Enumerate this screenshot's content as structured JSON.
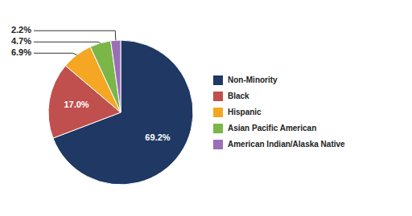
{
  "chart_data": {
    "type": "pie",
    "categories": [
      "Non-Minority",
      "Black",
      "Hispanic",
      "Asian Pacific American",
      "American Indian/Alaska Native"
    ],
    "values": [
      69.2,
      17.0,
      6.9,
      4.7,
      2.2
    ],
    "value_labels": [
      "69.2%",
      "17.0%",
      "6.9%",
      "4.7%",
      "2.2%"
    ],
    "colors": [
      "#1f3864",
      "#c0504d",
      "#f5a623",
      "#7ab648",
      "#9b6fb5"
    ],
    "data_labels": true,
    "legend": "right"
  }
}
